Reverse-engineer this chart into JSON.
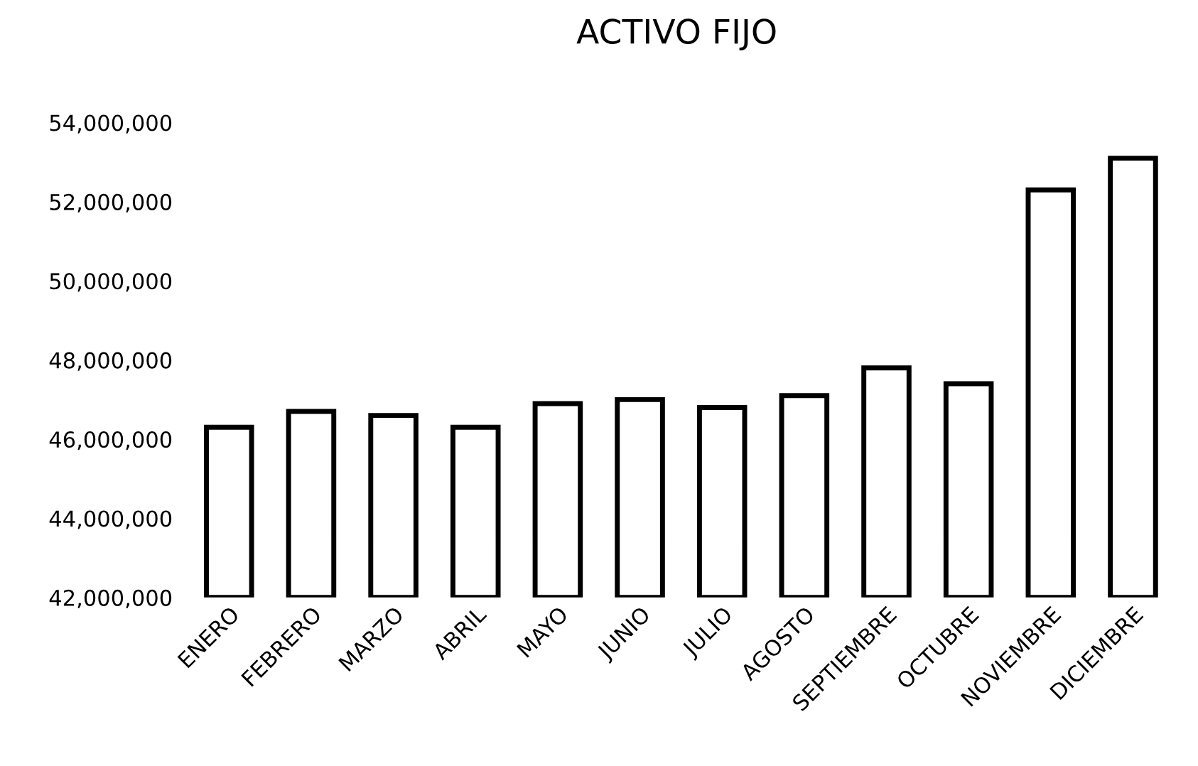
{
  "chart_data": {
    "type": "bar",
    "title": "ACTIVO FIJO",
    "categories": [
      "ENERO",
      "FEBRERO",
      "MARZO",
      "ABRIL",
      "MAYO",
      "JUNIO",
      "JULIO",
      "AGOSTO",
      "SEPTIEMBRE",
      "OCTUBRE",
      "NOVIEMBRE",
      "DICIEMBRE"
    ],
    "values": [
      46300000,
      46700000,
      46600000,
      46300000,
      46900000,
      47000000,
      46800000,
      47100000,
      47800000,
      47400000,
      52300000,
      53100000
    ],
    "color": "#ffffff",
    "ylim": [
      42000000,
      54000000
    ],
    "yticks": [
      {
        "value": 42000000,
        "label": "42,000,000"
      },
      {
        "value": 44000000,
        "label": "44,000,000"
      },
      {
        "value": 46000000,
        "label": "46,000,000"
      },
      {
        "value": 48000000,
        "label": "48,000,000"
      },
      {
        "value": 50000000,
        "label": "50,000,000"
      },
      {
        "value": 52000000,
        "label": "52,000,000"
      },
      {
        "value": 54000000,
        "label": "54,000,000"
      }
    ],
    "grid": false
  }
}
